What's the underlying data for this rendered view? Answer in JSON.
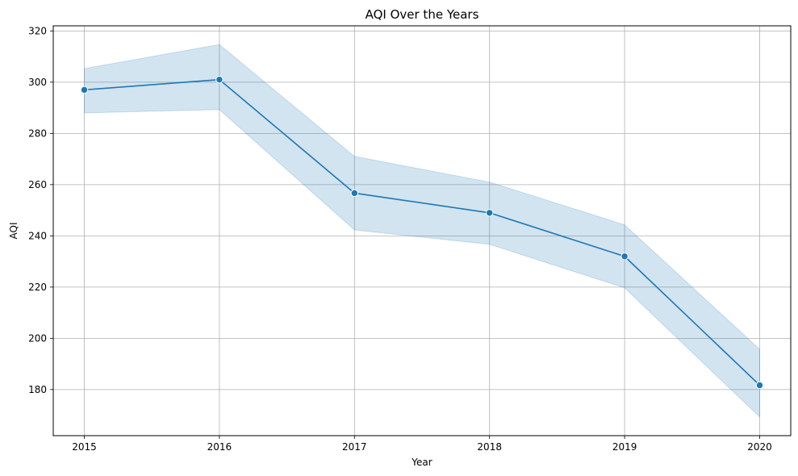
{
  "chart_data": {
    "type": "line",
    "title": "AQI Over the Years",
    "xlabel": "Year",
    "ylabel": "AQI",
    "x": [
      2015,
      2016,
      2017,
      2018,
      2019,
      2020
    ],
    "x_tick_labels": [
      "2015",
      "2016",
      "2017",
      "2018",
      "2019",
      "2020"
    ],
    "y_ticks": [
      180,
      200,
      220,
      240,
      260,
      280,
      300,
      320
    ],
    "ylim": [
      162,
      322
    ],
    "xlim": [
      2014.77,
      2020.23
    ],
    "grid": true,
    "series": [
      {
        "values": [
          297,
          301,
          256.7,
          249,
          232,
          181.7
        ],
        "ci_lower": [
          288,
          289.3,
          242.3,
          236.7,
          219.7,
          169.3
        ],
        "ci_upper": [
          305.3,
          314.7,
          271,
          261,
          244.3,
          195.7
        ],
        "color": "#1f77b4",
        "band_color": "#1f77b4",
        "marker": "circle"
      }
    ]
  }
}
